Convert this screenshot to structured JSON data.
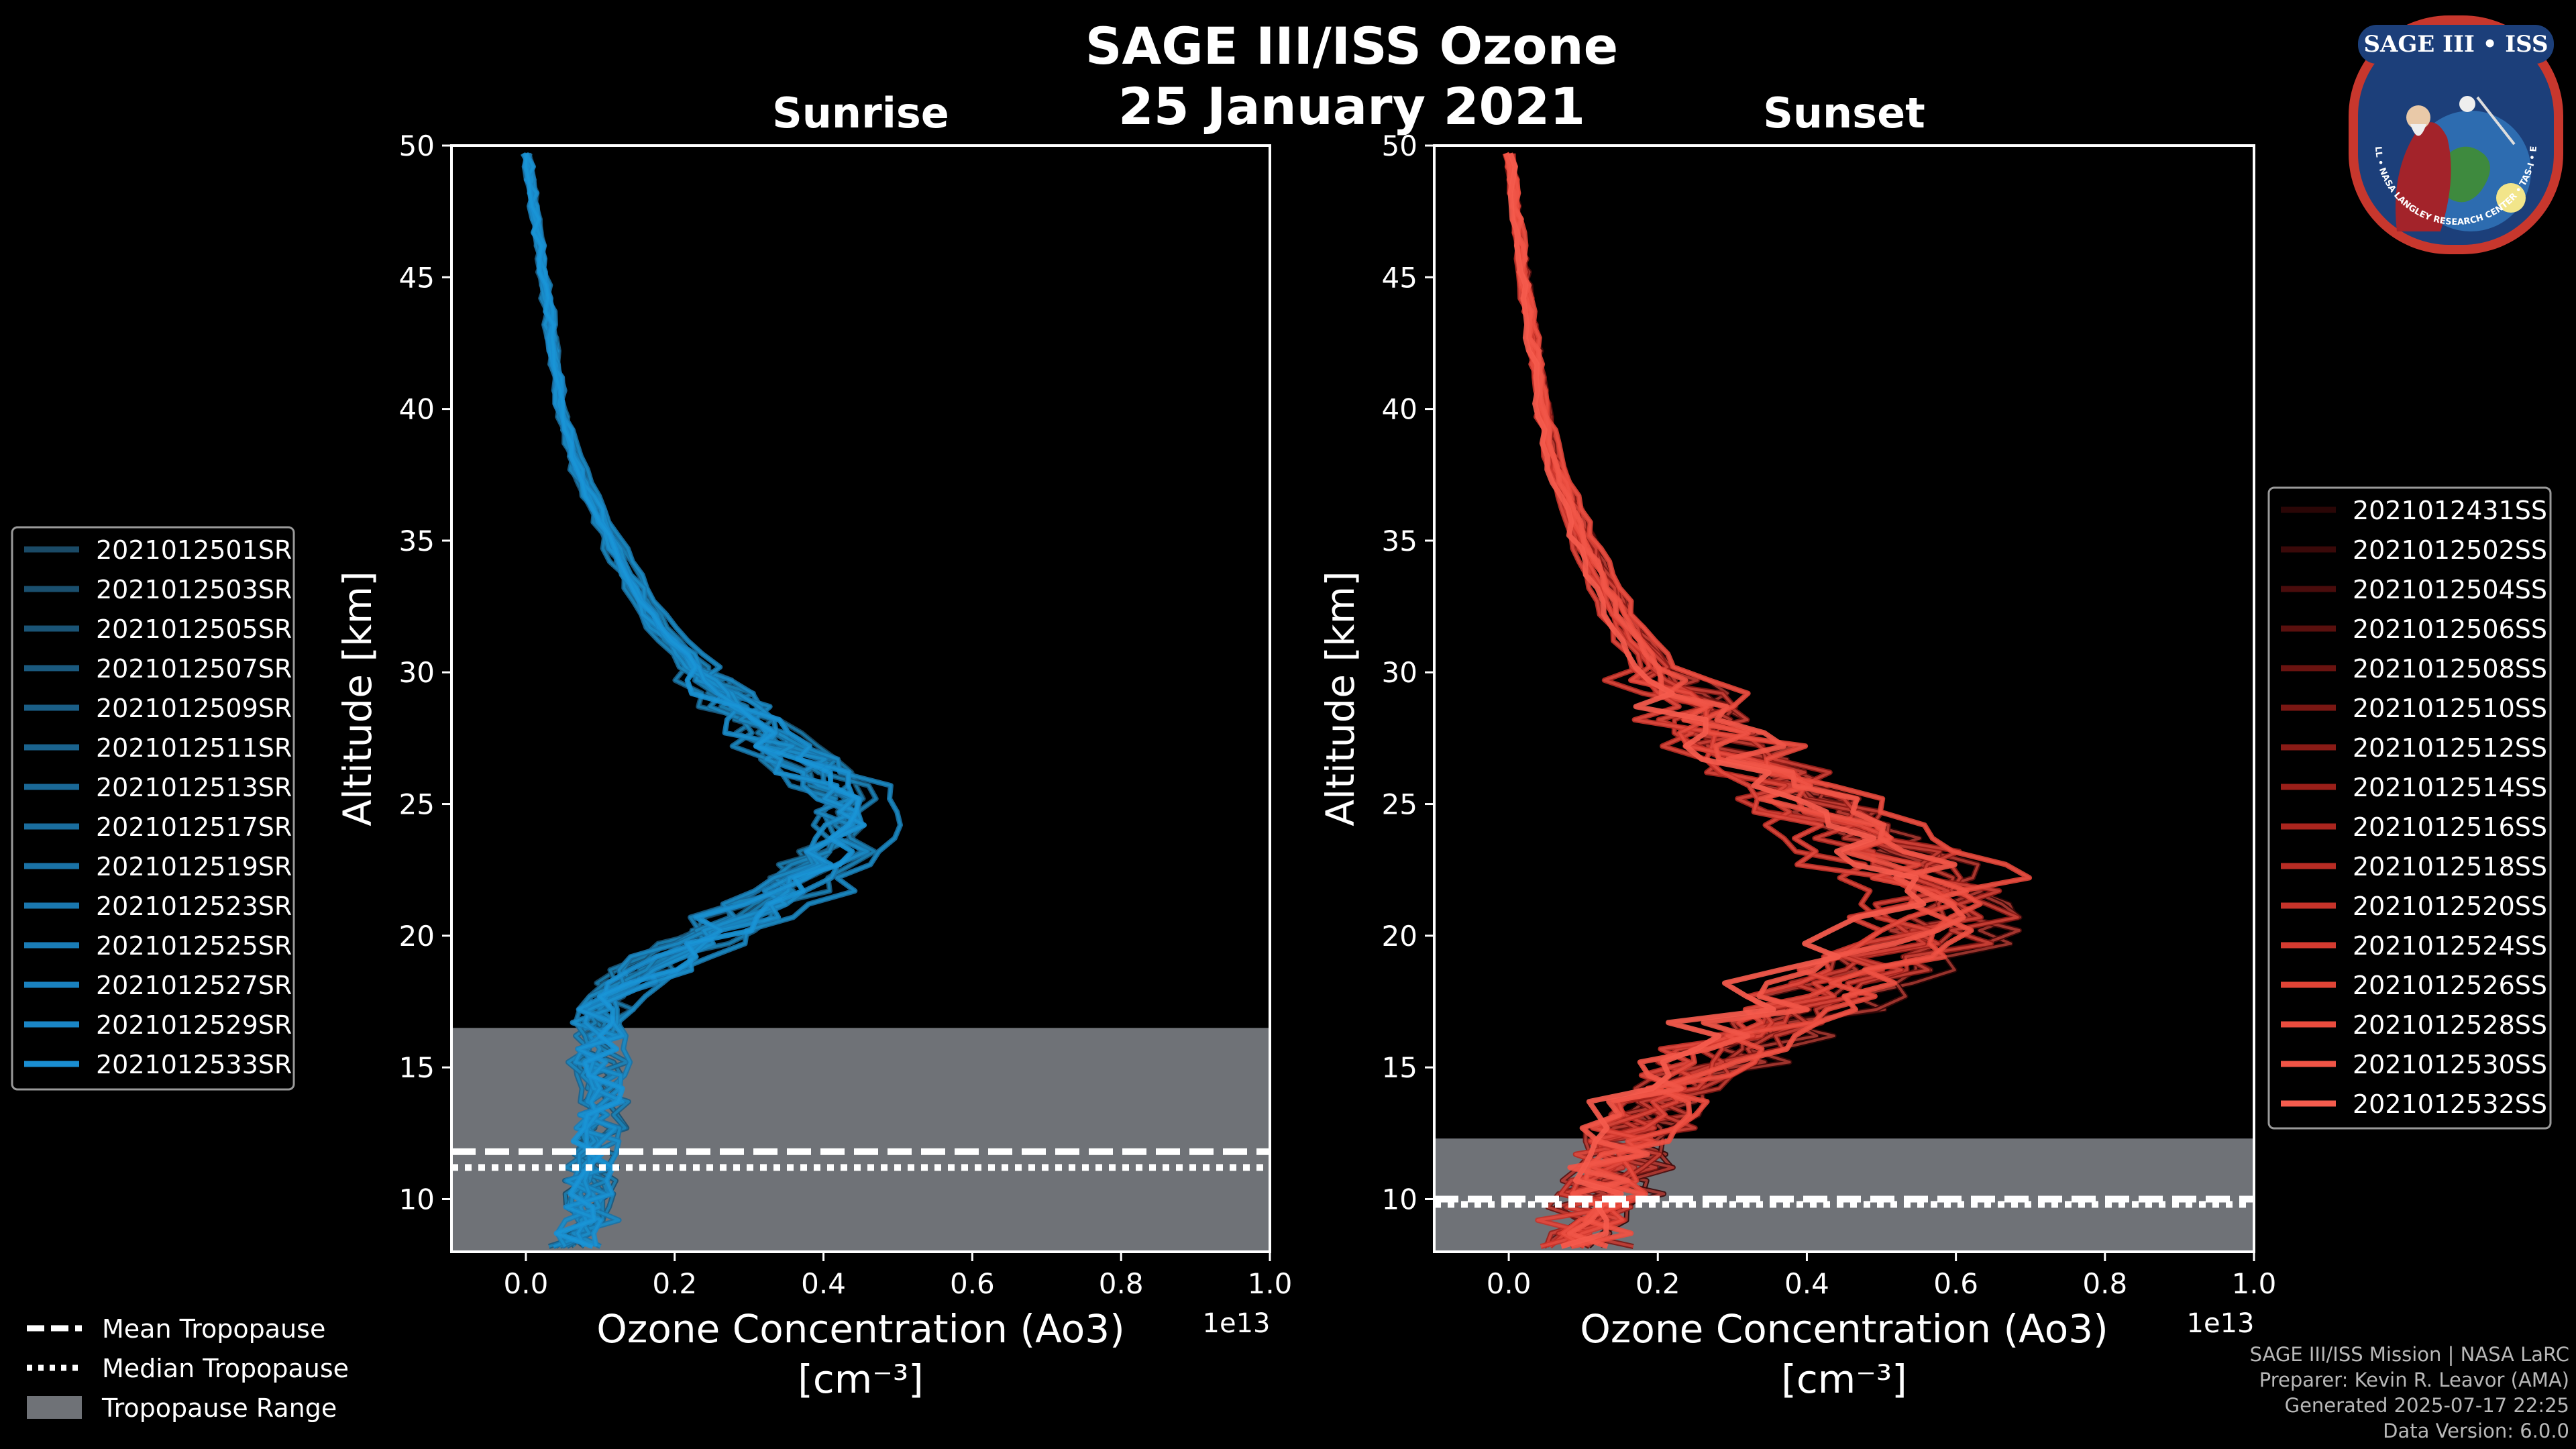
{
  "chart_data": {
    "title_line1": "SAGE III/ISS Ozone",
    "title_line2": "25 January 2021",
    "type": "line",
    "xlabel_line1": "Ozone Concentration (Ao3)",
    "xlabel_line2": "[cm⁻³]",
    "x_multiplier": "1e13",
    "ylabel": "Altitude [km]",
    "xlim": [
      -0.1,
      1.0
    ],
    "ylim": [
      8,
      50
    ],
    "xticks": [
      0.0,
      0.2,
      0.4,
      0.6,
      0.8,
      1.0
    ],
    "xtick_labels": [
      "0.0",
      "0.2",
      "0.4",
      "0.6",
      "0.8",
      "1.0"
    ],
    "yticks": [
      10,
      15,
      20,
      25,
      30,
      35,
      40,
      45,
      50
    ],
    "panels": [
      {
        "subtitle": "Sunrise",
        "line_color": "#1a9ad8",
        "tropopause": {
          "mean": 11.8,
          "median": 11.2,
          "range": [
            8,
            16.5
          ]
        },
        "series_names": [
          "2021012501SR",
          "2021012503SR",
          "2021012505SR",
          "2021012507SR",
          "2021012509SR",
          "2021012511SR",
          "2021012513SR",
          "2021012517SR",
          "2021012519SR",
          "2021012523SR",
          "2021012525SR",
          "2021012527SR",
          "2021012529SR",
          "2021012533SR"
        ],
        "legend_colors": [
          "#1a4a66",
          "#1a4f6e",
          "#1a5476",
          "#1a597e",
          "#1a5e86",
          "#1a638e",
          "#1a6896",
          "#1a6d9e",
          "#1a72a6",
          "#1a77ae",
          "#1a7cb6",
          "#1a81be",
          "#1a86c6",
          "#1a8ed2"
        ],
        "mean_profile": {
          "alt": [
            8.5,
            10,
            12,
            14,
            16,
            17,
            18,
            19,
            20,
            21,
            22,
            23,
            24,
            25,
            26,
            27,
            28,
            30,
            32,
            35,
            38,
            40,
            42,
            45,
            48,
            50
          ],
          "conc": [
            0.07,
            0.09,
            0.1,
            0.11,
            0.1,
            0.1,
            0.13,
            0.18,
            0.25,
            0.32,
            0.38,
            0.42,
            0.45,
            0.45,
            0.43,
            0.38,
            0.33,
            0.25,
            0.18,
            0.12,
            0.07,
            0.05,
            0.04,
            0.025,
            0.01,
            0.0
          ]
        }
      },
      {
        "subtitle": "Sunset",
        "line_color": "#f2584a",
        "tropopause": {
          "mean": 10.0,
          "median": 9.8,
          "range": [
            8,
            12.3
          ]
        },
        "series_names": [
          "2021012431SS",
          "2021012502SS",
          "2021012504SS",
          "2021012506SS",
          "2021012508SS",
          "2021012510SS",
          "2021012512SS",
          "2021012514SS",
          "2021012516SS",
          "2021012518SS",
          "2021012520SS",
          "2021012524SS",
          "2021012526SS",
          "2021012528SS",
          "2021012530SS",
          "2021012532SS"
        ],
        "legend_colors": [
          "#2a0606",
          "#3a0909",
          "#4a0c0c",
          "#5a100e",
          "#6a1310",
          "#7a1713",
          "#8a1b16",
          "#9a1f19",
          "#aa251e",
          "#b82c24",
          "#c6332a",
          "#d43b30",
          "#e04436",
          "#ea4c3e",
          "#f05446",
          "#f55c4e"
        ],
        "mean_profile": {
          "alt": [
            8.5,
            10,
            11,
            12,
            13,
            14,
            15,
            16,
            17,
            18,
            19,
            20,
            21,
            22,
            23,
            24,
            25,
            26,
            27,
            28,
            30,
            32,
            35,
            38,
            40,
            42,
            45,
            48,
            50
          ],
          "conc": [
            0.1,
            0.12,
            0.14,
            0.15,
            0.17,
            0.2,
            0.25,
            0.3,
            0.36,
            0.42,
            0.48,
            0.55,
            0.58,
            0.56,
            0.5,
            0.45,
            0.4,
            0.35,
            0.3,
            0.26,
            0.2,
            0.15,
            0.1,
            0.06,
            0.045,
            0.035,
            0.02,
            0.008,
            0.0
          ]
        }
      }
    ],
    "tropopause_legend": [
      "Mean Tropopause",
      "Median Tropopause",
      "Tropopause Range"
    ]
  },
  "logo": {
    "top": "SAGE III • ISS",
    "ring": "BALL • NASA LANGLEY RESEARCH CENTER • TAS-I • ESA"
  },
  "footer": {
    "line1": "SAGE III/ISS Mission | NASA LaRC",
    "line2": "Preparer: Kevin R. Leavor (AMA)",
    "line3": "Generated 2025-07-17 22:25",
    "line4": "Data Version: 6.0.0"
  }
}
